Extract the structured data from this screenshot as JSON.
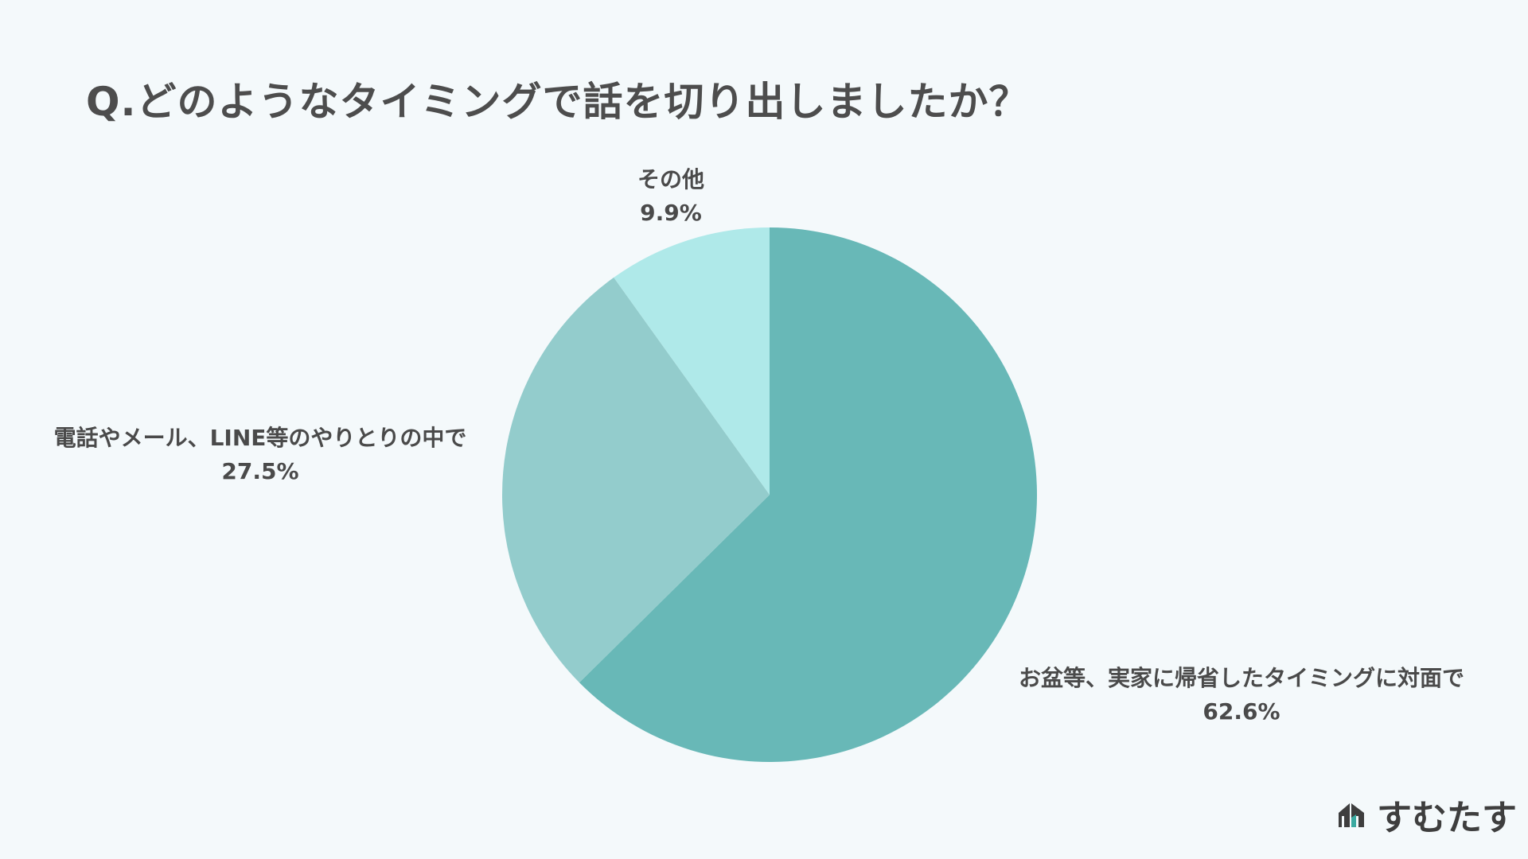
{
  "title": "Q.どのようなタイミングで話を切り出しましたか？",
  "brand": {
    "name": "すむたす",
    "icon": "house-logo-icon",
    "icon_colors": [
      "#3e3e3e",
      "#3aa9a0"
    ]
  },
  "chart_data": {
    "type": "pie",
    "start_angle_deg": 0,
    "direction": "clockwise",
    "slices": [
      {
        "label": "お盆等、実家に帰省したタイミングに対面で",
        "value": 62.6,
        "value_label": "62.6%",
        "color": "#68b8b7"
      },
      {
        "label": "電話やメール、LINE等のやりとりの中で",
        "value": 27.5,
        "value_label": "27.5%",
        "color": "#93cccc"
      },
      {
        "label": "その他",
        "value": 9.9,
        "value_label": "9.9%",
        "color": "#afe9e9"
      }
    ]
  }
}
